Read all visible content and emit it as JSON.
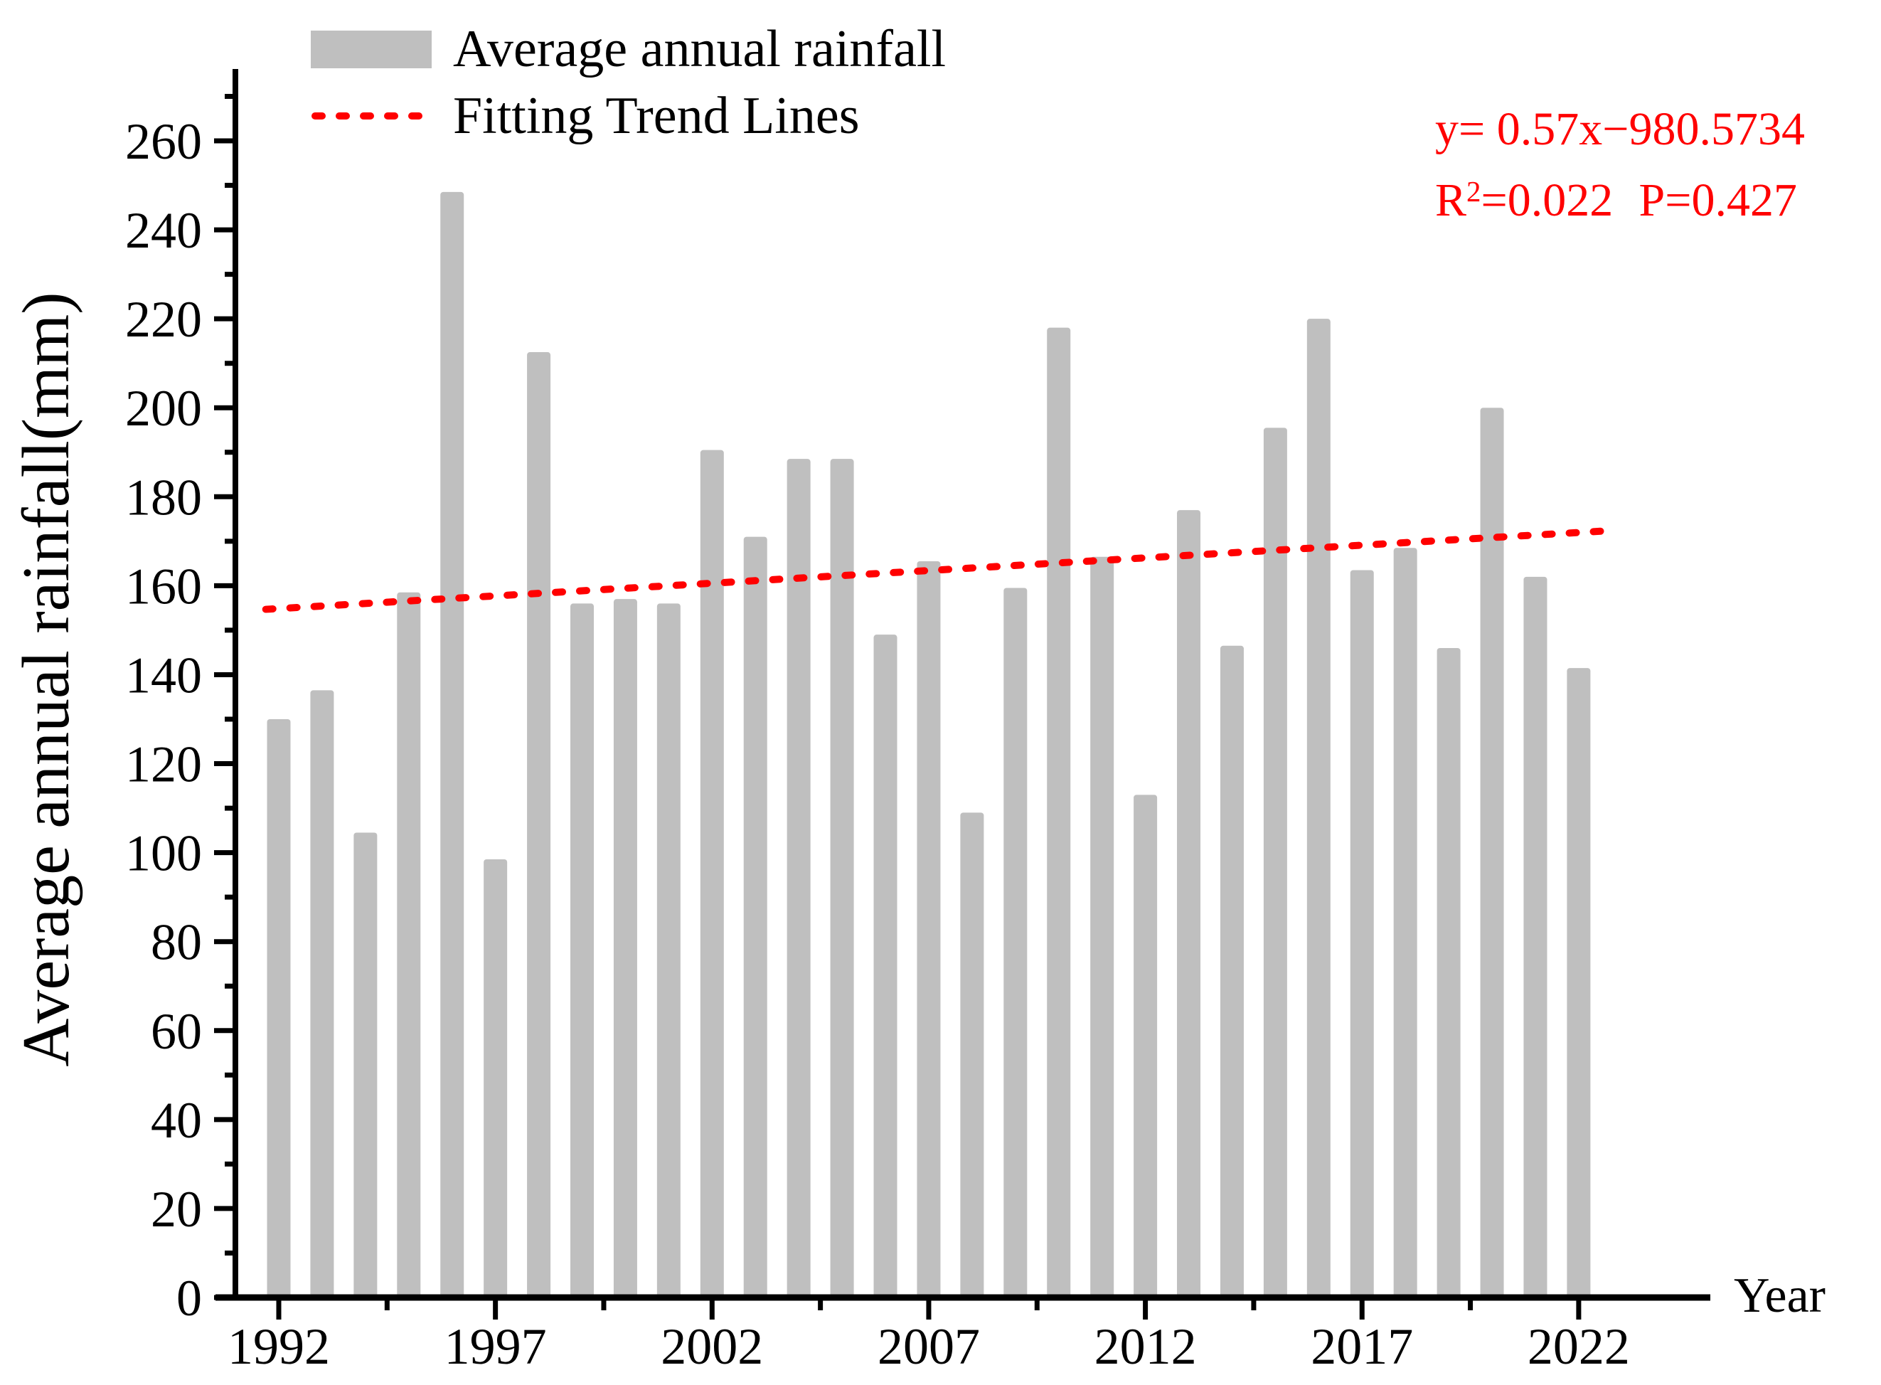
{
  "chart_data": {
    "type": "bar",
    "title": "",
    "xlabel": "Year",
    "ylabel": "Average annual rainfall(mm)",
    "series_name": "Average annual rainfall",
    "x": [
      1992,
      1993,
      1994,
      1995,
      1996,
      1997,
      1998,
      1999,
      2000,
      2001,
      2002,
      2003,
      2004,
      2005,
      2006,
      2007,
      2008,
      2009,
      2010,
      2011,
      2012,
      2013,
      2014,
      2015,
      2016,
      2017,
      2018,
      2019,
      2020,
      2021,
      2022
    ],
    "values": [
      130,
      136.5,
      104.5,
      158.5,
      248.5,
      98.5,
      212.5,
      156,
      157,
      156,
      190.5,
      171,
      188.5,
      188.5,
      149,
      165.5,
      109,
      159.5,
      218,
      166.5,
      113,
      177,
      146.5,
      195.5,
      220,
      163.5,
      168.5,
      146,
      200,
      162,
      141.5
    ],
    "ylim": [
      0,
      270
    ],
    "y_major_ticks": [
      0,
      20,
      40,
      60,
      80,
      100,
      120,
      140,
      160,
      180,
      200,
      220,
      240,
      260
    ],
    "y_minor_step": 10,
    "x_major_ticks": [
      1992,
      1997,
      2002,
      2007,
      2012,
      2017,
      2022
    ],
    "grid": false,
    "legend_position": "top-left",
    "trend": {
      "label": "Fitting Trend Lines",
      "slope": 0.57,
      "intercept": -980.5734,
      "x_start": 1991.7,
      "x_end": 2022.8
    }
  },
  "legend": {
    "bar_label": "Average annual rainfall",
    "trend_label": "Fitting Trend Lines"
  },
  "annotation": {
    "equation_line1": "y= 0.57x−980.5734",
    "r_base": "R",
    "r_exp": "2",
    "r_rest": "=0.022",
    "p_label": "P=0.427",
    "color": "#ff0000"
  },
  "axis": {
    "x_label": "Year",
    "y_label": "Average annual rainfall(mm)"
  },
  "colors": {
    "bar": "#bfbfbf",
    "trend": "#ff0000",
    "axis": "#000000"
  }
}
